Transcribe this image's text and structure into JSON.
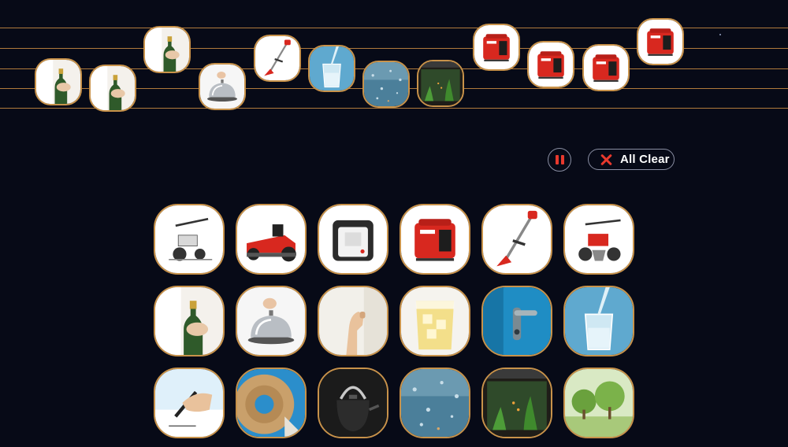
{
  "controls": {
    "pause_label": "",
    "clear_label": "All Clear"
  },
  "colors": {
    "background": "#070a17",
    "staff_line": "#b07a3c",
    "tile_border": "#c8924a",
    "accent_red": "#e8392d"
  },
  "staff": {
    "line_count": 5,
    "notes": [
      {
        "icon": "champagne-bottle-icon",
        "sound": "champagne"
      },
      {
        "icon": "champagne-bottle-icon",
        "sound": "champagne"
      },
      {
        "icon": "champagne-bottle-icon",
        "sound": "champagne"
      },
      {
        "icon": "service-bell-icon",
        "sound": "bell"
      },
      {
        "icon": "grass-trimmer-icon",
        "sound": "trimmer"
      },
      {
        "icon": "water-glass-icon",
        "sound": "water-pour"
      },
      {
        "icon": "rainy-window-icon",
        "sound": "rain"
      },
      {
        "icon": "aquarium-icon",
        "sound": "aquarium"
      },
      {
        "icon": "generator-icon",
        "sound": "generator"
      },
      {
        "icon": "generator-icon",
        "sound": "generator"
      },
      {
        "icon": "generator-icon",
        "sound": "generator"
      },
      {
        "icon": "generator-icon",
        "sound": "generator"
      }
    ]
  },
  "palette": {
    "rows": [
      [
        {
          "icon": "tiller-icon",
          "sound": "tiller"
        },
        {
          "icon": "lawn-tractor-icon",
          "sound": "lawn-tractor"
        },
        {
          "icon": "white-generator-icon",
          "sound": "white-generator"
        },
        {
          "icon": "generator-icon",
          "sound": "generator"
        },
        {
          "icon": "grass-trimmer-icon",
          "sound": "trimmer"
        },
        {
          "icon": "red-tiller-icon",
          "sound": "red-tiller"
        }
      ],
      [
        {
          "icon": "champagne-bottle-icon",
          "sound": "champagne"
        },
        {
          "icon": "service-bell-icon",
          "sound": "bell"
        },
        {
          "icon": "door-knock-icon",
          "sound": "knock"
        },
        {
          "icon": "ice-drink-icon",
          "sound": "ice-drink"
        },
        {
          "icon": "door-handle-icon",
          "sound": "door-handle"
        },
        {
          "icon": "water-glass-icon",
          "sound": "water-pour"
        }
      ],
      [
        {
          "icon": "writing-pen-icon",
          "sound": "pen"
        },
        {
          "icon": "tape-roll-icon",
          "sound": "tape"
        },
        {
          "icon": "kettle-icon",
          "sound": "kettle"
        },
        {
          "icon": "rainy-window-icon",
          "sound": "rain"
        },
        {
          "icon": "aquarium-icon",
          "sound": "aquarium"
        },
        {
          "icon": "trees-icon",
          "sound": "forest"
        }
      ]
    ]
  }
}
